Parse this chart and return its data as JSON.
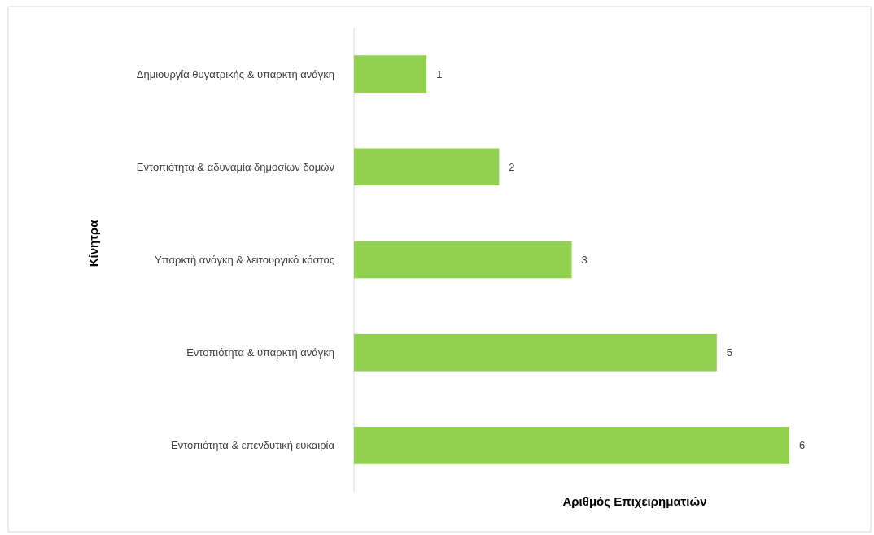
{
  "chart_data": {
    "type": "bar",
    "orientation": "horizontal",
    "xlabel": "Αριθμός Επιχειρηματιών",
    "ylabel": "Κίνητρα",
    "categories": [
      "Δημιουργία θυγατρικής & υπαρκτή ανάγκη",
      "Εντοπιότητα & αδυναμία δημοσίων δομών",
      "Υπαρκτή ανάγκη & λειτουργικό κόστος",
      "Εντοπιότητα & υπαρκτή ανάγκη",
      "Εντοπιότητα & επενδυτική ευκαιρία"
    ],
    "values": [
      1,
      2,
      3,
      5,
      6
    ],
    "color": "#92d050",
    "data_labels": true
  }
}
